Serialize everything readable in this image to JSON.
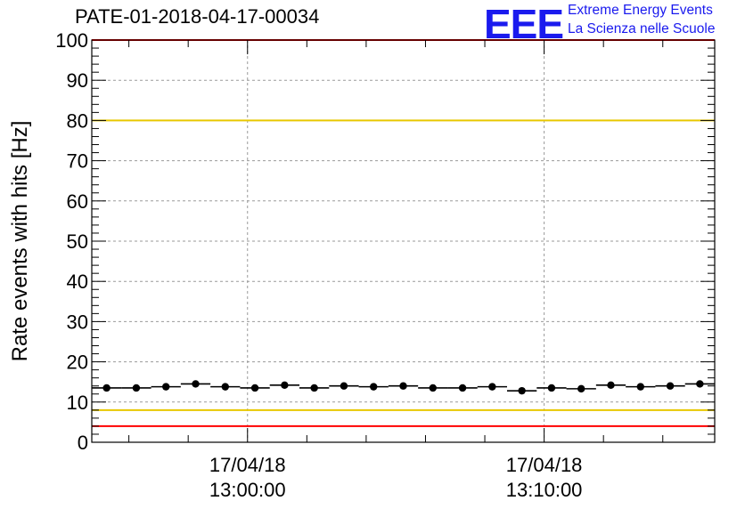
{
  "header": {
    "title": "PATE-01-2018-04-17-00034",
    "logo_text": "EEE",
    "logo_line1": "Extreme Energy Events",
    "logo_line2": "La Scienza nelle Scuole",
    "logo_color": "#1a1aee"
  },
  "chart_data": {
    "type": "scatter",
    "title": "PATE-01-2018-04-17-00034",
    "ylabel": "Rate events with hits [Hz]",
    "xlabel": "",
    "ylim": [
      0,
      100
    ],
    "yticks": [
      0,
      10,
      20,
      30,
      40,
      50,
      60,
      70,
      80,
      90,
      100
    ],
    "xlim": [
      "2018-04-17 12:54:45",
      "2018-04-17 13:15:45"
    ],
    "xticks": [
      {
        "time": "2018-04-17 13:00:00",
        "label_date": "17/04/18",
        "label_time": "13:00:00"
      },
      {
        "time": "2018-04-17 13:10:00",
        "label_date": "17/04/18",
        "label_time": "13:10:00"
      }
    ],
    "grid": true,
    "reference_lines": [
      {
        "y": 100,
        "color": "#ff0000"
      },
      {
        "y": 80,
        "color": "#e8c800"
      },
      {
        "y": 8,
        "color": "#e8c800"
      },
      {
        "y": 4,
        "color": "#ff0000"
      }
    ],
    "bin_width_seconds": 60,
    "points": [
      {
        "x": "2018-04-17 12:55:15",
        "y": 13.5
      },
      {
        "x": "2018-04-17 12:56:15",
        "y": 13.5
      },
      {
        "x": "2018-04-17 12:57:15",
        "y": 13.8
      },
      {
        "x": "2018-04-17 12:58:15",
        "y": 14.5
      },
      {
        "x": "2018-04-17 12:59:15",
        "y": 13.8
      },
      {
        "x": "2018-04-17 13:00:15",
        "y": 13.5
      },
      {
        "x": "2018-04-17 13:01:15",
        "y": 14.2
      },
      {
        "x": "2018-04-17 13:02:15",
        "y": 13.5
      },
      {
        "x": "2018-04-17 13:03:15",
        "y": 14.0
      },
      {
        "x": "2018-04-17 13:04:15",
        "y": 13.8
      },
      {
        "x": "2018-04-17 13:05:15",
        "y": 14.0
      },
      {
        "x": "2018-04-17 13:06:15",
        "y": 13.5
      },
      {
        "x": "2018-04-17 13:07:15",
        "y": 13.5
      },
      {
        "x": "2018-04-17 13:08:15",
        "y": 13.8
      },
      {
        "x": "2018-04-17 13:09:15",
        "y": 12.8
      },
      {
        "x": "2018-04-17 13:10:15",
        "y": 13.5
      },
      {
        "x": "2018-04-17 13:11:15",
        "y": 13.3
      },
      {
        "x": "2018-04-17 13:12:15",
        "y": 14.2
      },
      {
        "x": "2018-04-17 13:13:15",
        "y": 13.8
      },
      {
        "x": "2018-04-17 13:14:15",
        "y": 14.0
      },
      {
        "x": "2018-04-17 13:15:15",
        "y": 14.5
      }
    ]
  }
}
